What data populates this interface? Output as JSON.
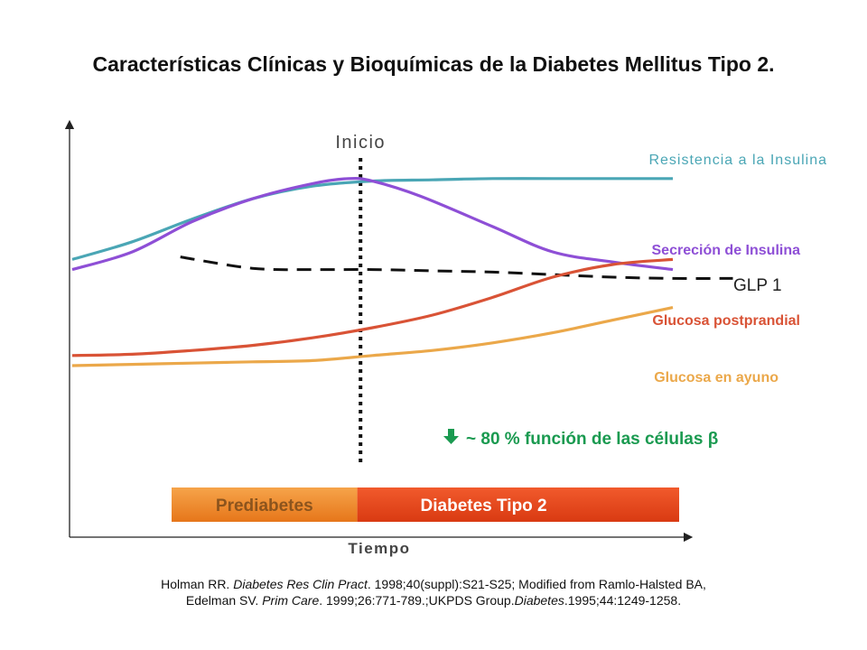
{
  "title": "Características Clínicas y Bioquímicas de la Diabetes Mellitus Tipo 2.",
  "chart_data": {
    "type": "line",
    "title": "Características Clínicas y Bioquímicas de la Diabetes Mellitus Tipo 2.",
    "xlabel": "Tiempo",
    "ylabel": "",
    "xlim": [
      0,
      100
    ],
    "ylim": [
      0,
      100
    ],
    "onset": {
      "label": "Inicio",
      "x": 48
    },
    "series": [
      {
        "name": "Resistencia a la Insulina",
        "color": "#4aa6b5",
        "dash": false,
        "x": [
          0,
          10,
          20,
          30,
          40,
          50,
          60,
          70,
          80,
          90,
          100
        ],
        "y": [
          67,
          74,
          83,
          91,
          96,
          98,
          98.5,
          99,
          99,
          99,
          99
        ]
      },
      {
        "name": "Secreción de Insulina",
        "color": "#8e4fd6",
        "dash": false,
        "x": [
          0,
          10,
          20,
          30,
          40,
          46,
          50,
          58,
          70,
          80,
          90,
          100
        ],
        "y": [
          63,
          70,
          82,
          91,
          97,
          99,
          98,
          92,
          80,
          70,
          66,
          63
        ]
      },
      {
        "name": "GLP 1",
        "color": "#111111",
        "dash": true,
        "x": [
          18,
          30,
          40,
          50,
          60,
          70,
          80,
          90,
          100,
          110
        ],
        "y": [
          68,
          63.5,
          63,
          63,
          62.5,
          62,
          61,
          60,
          59.5,
          59.5
        ]
      },
      {
        "name": "Glucosa postprandial",
        "color": "#d95336",
        "dash": false,
        "x": [
          0,
          10,
          20,
          30,
          40,
          50,
          60,
          70,
          80,
          90,
          100
        ],
        "y": [
          29,
          29.5,
          31,
          33,
          36,
          40,
          45,
          52,
          60,
          65,
          67
        ]
      },
      {
        "name": "Glucosa en ayuno",
        "color": "#eba84a",
        "dash": false,
        "x": [
          0,
          10,
          20,
          30,
          40,
          50,
          60,
          70,
          80,
          90,
          100
        ],
        "y": [
          25,
          25.5,
          26,
          26.5,
          27,
          29,
          31,
          34,
          38,
          43,
          48
        ]
      }
    ],
    "annotation": "~ 80 % función de las células β",
    "phases": [
      {
        "label": "Prediabetes",
        "from": 18,
        "to": 48,
        "color": "#f08a2a"
      },
      {
        "label": "Diabetes Tipo 2",
        "from": 48,
        "to": 100,
        "color": "#e8471c"
      }
    ]
  },
  "citation": {
    "prefix": "Holman RR. ",
    "journal1": "Diabetes Res Clin Pract",
    "part2": ". 1998;40(suppl):S21-S25; Modified from Ramlo-Halsted BA, Edelman SV. ",
    "journal2": "Prim Care",
    "part3": ". 1999;26:771-789.;UKPDS Group.",
    "journal3": "Diabetes",
    "part4": ".1995;44:1249-1258."
  }
}
